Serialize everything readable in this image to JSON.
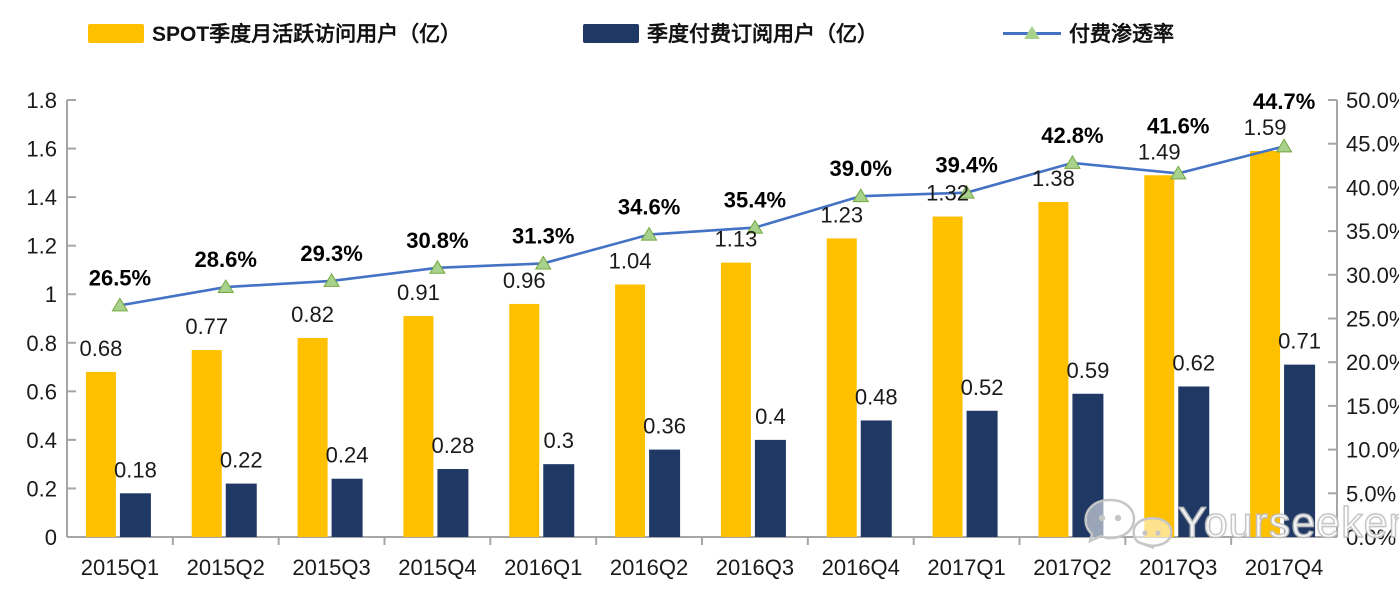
{
  "watermark": {
    "text": "Yourseeker",
    "icon": "wechat-icon"
  },
  "colors": {
    "mau_bar": "#FFC000",
    "subs_bar": "#1F3864",
    "line": "#4472C4",
    "marker": "#A9D18E",
    "marker_edge": "#74A83F",
    "axis": "#A6A6A6",
    "label_text": "#1A1A1A"
  },
  "chart_data": {
    "type": "bar+line",
    "title": "",
    "xlabel": "",
    "ylabel_left": "",
    "ylabel_right": "",
    "grid": false,
    "legend_position": "top",
    "categories": [
      "2015Q1",
      "2015Q2",
      "2015Q3",
      "2015Q4",
      "2016Q1",
      "2016Q2",
      "2016Q3",
      "2016Q4",
      "2017Q1",
      "2017Q2",
      "2017Q3",
      "2017Q4"
    ],
    "series": [
      {
        "name": "SPOT季度月活跃访问用户（亿）",
        "type": "bar",
        "axis": "left",
        "color": "#FFC000",
        "values": [
          0.68,
          0.77,
          0.82,
          0.91,
          0.96,
          1.04,
          1.13,
          1.23,
          1.32,
          1.38,
          1.49,
          1.59
        ],
        "labels": [
          "0.68",
          "0.77",
          "0.82",
          "0.91",
          "0.96",
          "1.04",
          "1.13",
          "1.23",
          "1.32",
          "1.38",
          "1.49",
          "1.59"
        ]
      },
      {
        "name": "季度付费订阅用户（亿）",
        "type": "bar",
        "axis": "left",
        "color": "#1F3864",
        "values": [
          0.18,
          0.22,
          0.24,
          0.28,
          0.3,
          0.36,
          0.4,
          0.48,
          0.52,
          0.59,
          0.62,
          0.71
        ],
        "labels": [
          "0.18",
          "0.22",
          "0.24",
          "0.28",
          "0.3",
          "0.36",
          "0.4",
          "0.48",
          "0.52",
          "0.59",
          "0.62",
          "0.71"
        ]
      },
      {
        "name": "付费渗透率",
        "type": "line",
        "axis": "right",
        "color": "#4472C4",
        "marker": "triangle",
        "marker_color": "#A9D18E",
        "values": [
          26.5,
          28.6,
          29.3,
          30.8,
          31.3,
          34.6,
          35.4,
          39.0,
          39.4,
          42.8,
          41.6,
          44.7
        ],
        "labels": [
          "26.5%",
          "28.6%",
          "29.3%",
          "30.8%",
          "31.3%",
          "34.6%",
          "35.4%",
          "39.0%",
          "39.4%",
          "42.8%",
          "41.6%",
          "44.7%"
        ]
      }
    ],
    "left_axis": {
      "min": 0,
      "max": 1.8,
      "step": 0.2,
      "ticks": [
        "0",
        "0.2",
        "0.4",
        "0.6",
        "0.8",
        "1",
        "1.2",
        "1.4",
        "1.6",
        "1.8"
      ]
    },
    "right_axis": {
      "min": 0,
      "max": 50,
      "step": 5,
      "ticks": [
        "0.0%",
        "5.0%",
        "10.0%",
        "15.0%",
        "20.0%",
        "25.0%",
        "30.0%",
        "35.0%",
        "40.0%",
        "45.0%",
        "50.0%"
      ]
    }
  }
}
